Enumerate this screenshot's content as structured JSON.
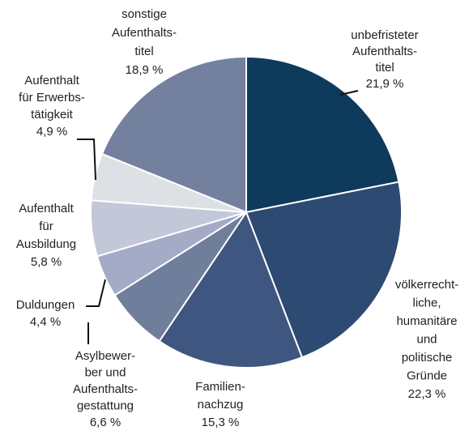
{
  "chart_data": {
    "type": "pie",
    "categories": [
      [
        "unbefristeter",
        "Aufenthalts-",
        "titel"
      ],
      [
        "völkerrecht-",
        "liche,",
        "humanitäre",
        "und",
        "politische",
        "Gründe"
      ],
      [
        "Familien-",
        "nachzug"
      ],
      [
        "Asylbewer-",
        "ber und",
        "Aufenthalts-",
        "gestattung"
      ],
      [
        "Duldungen"
      ],
      [
        "Aufenthalt",
        "für",
        "Ausbildung"
      ],
      [
        "Aufenthalt",
        "für Erwerbs-",
        "tätigkeit"
      ],
      [
        "sonstige",
        "Aufenthalts-",
        "titel"
      ]
    ],
    "values": [
      21.9,
      22.3,
      15.3,
      6.6,
      4.4,
      5.8,
      4.9,
      18.9
    ],
    "value_labels": [
      "21,9 %",
      "22,3 %",
      "15,3 %",
      "6,6 %",
      "4,4 %",
      "5,8 %",
      "4,9 %",
      "18,9 %"
    ],
    "colors": [
      "#0e3a5c",
      "#2c4a72",
      "#3f5680",
      "#6f7e9b",
      "#a4abc6",
      "#c3c8d8",
      "#dde1e6",
      "#73819f"
    ]
  }
}
